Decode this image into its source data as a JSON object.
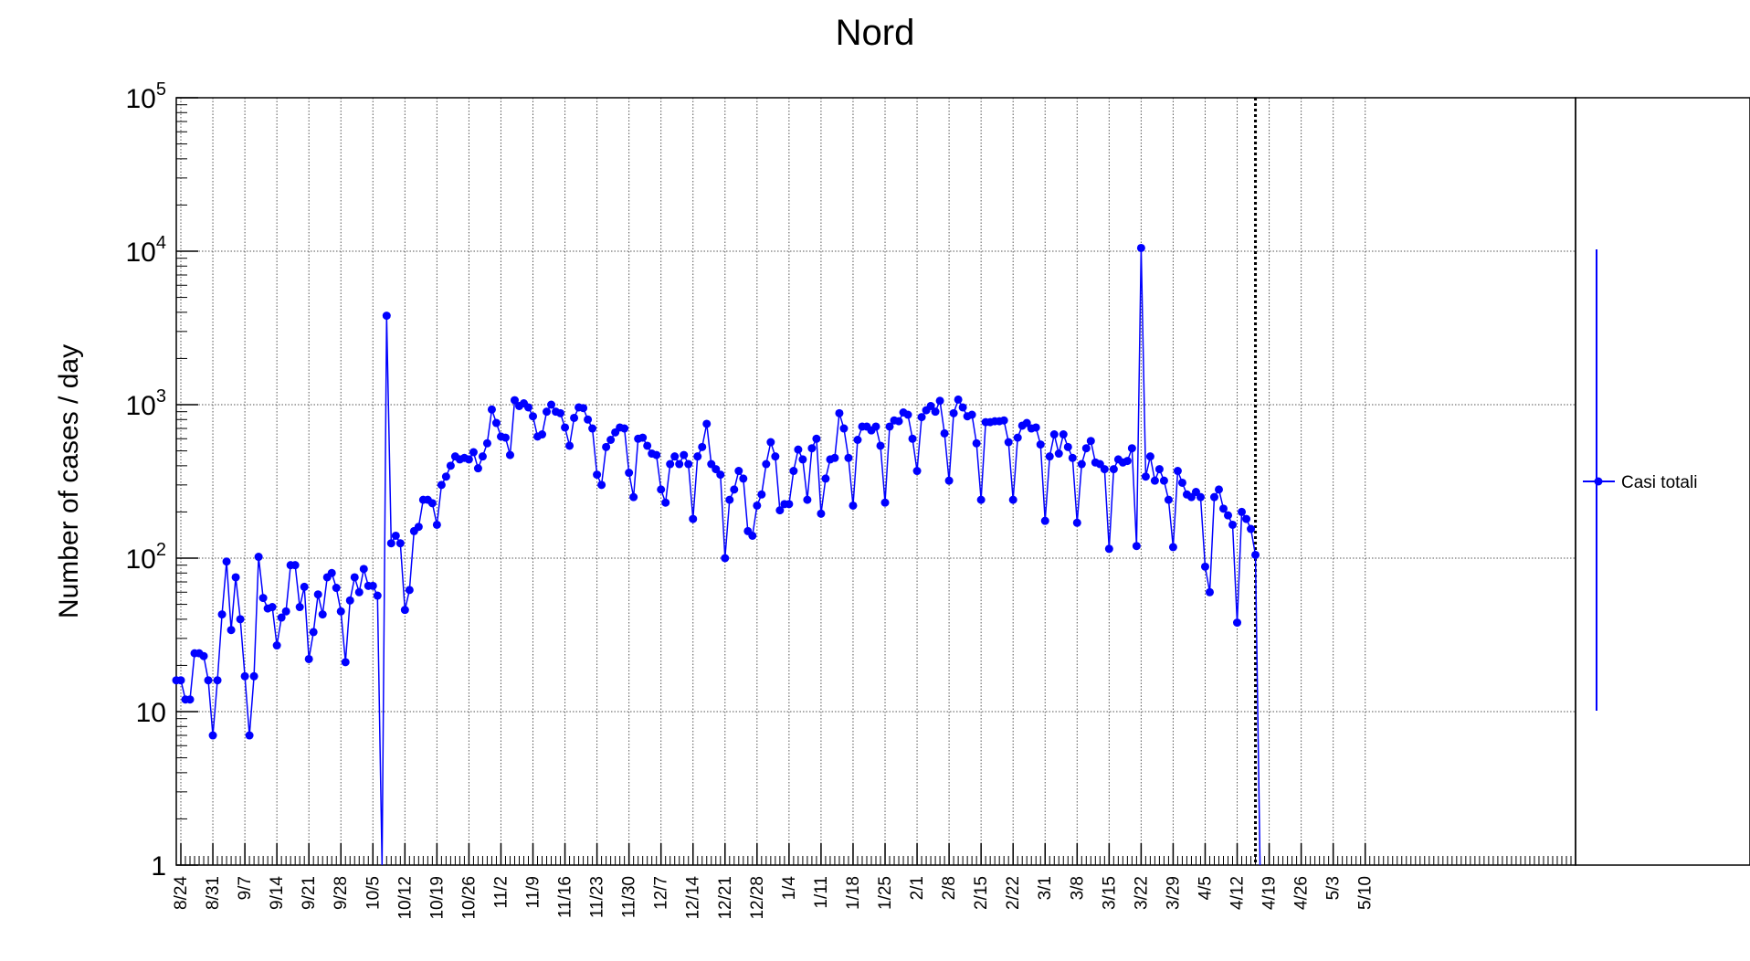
{
  "chart_data": {
    "type": "line",
    "title": "Nord",
    "xlabel": "",
    "ylabel": "Number of cases / day",
    "yscale": "log",
    "ylim": [
      1,
      100000
    ],
    "y_tick_labels": [
      "1",
      "10",
      "10",
      "10",
      "10",
      "10"
    ],
    "y_tick_exponents": [
      "",
      "",
      "2",
      "3",
      "4",
      "5"
    ],
    "grid": true,
    "legend_position": "right",
    "x_tick_labels": [
      "8/24",
      "8/31",
      "9/7",
      "9/14",
      "9/21",
      "9/28",
      "10/5",
      "10/12",
      "10/19",
      "10/26",
      "11/2",
      "11/9",
      "11/16",
      "11/23",
      "11/30",
      "12/7",
      "12/14",
      "12/21",
      "12/28",
      "1/4",
      "1/11",
      "1/18",
      "1/25",
      "2/1",
      "2/8",
      "2/15",
      "2/22",
      "3/1",
      "3/8",
      "3/15",
      "3/22",
      "3/29",
      "4/5",
      "4/12",
      "4/19",
      "4/26",
      "5/3",
      "5/10"
    ],
    "x_start": "8/23",
    "marker_date": "4/16",
    "series": [
      {
        "name": "Casi totali",
        "color": "#0000ff",
        "error_bar": [
          10,
          10000
        ],
        "values": [
          16,
          16,
          12,
          12,
          24,
          24,
          23,
          16,
          7,
          16,
          43,
          95,
          34,
          75,
          40,
          17,
          7,
          17,
          102,
          55,
          47,
          48,
          27,
          41,
          45,
          90,
          90,
          48,
          65,
          22,
          33,
          58,
          43,
          75,
          80,
          64,
          45,
          21,
          53,
          75,
          60,
          85,
          66,
          66,
          57,
          0,
          3800,
          125,
          140,
          125,
          46,
          62,
          150,
          160,
          240,
          240,
          228,
          165,
          300,
          340,
          400,
          460,
          440,
          450,
          440,
          490,
          385,
          460,
          560,
          930,
          760,
          620,
          610,
          470,
          1070,
          980,
          1020,
          960,
          840,
          620,
          640,
          900,
          1000,
          900,
          880,
          710,
          540,
          820,
          960,
          950,
          800,
          700,
          350,
          300,
          530,
          590,
          660,
          710,
          700,
          360,
          250,
          600,
          610,
          540,
          480,
          470,
          280,
          230,
          410,
          460,
          410,
          470,
          410,
          180,
          460,
          530,
          750,
          410,
          380,
          350,
          100,
          240,
          280,
          370,
          330,
          150,
          140,
          220,
          260,
          410,
          570,
          460,
          205,
          225,
          225,
          370,
          510,
          440,
          240,
          520,
          600,
          195,
          330,
          440,
          450,
          880,
          700,
          450,
          220,
          590,
          720,
          720,
          680,
          720,
          540,
          230,
          720,
          790,
          780,
          890,
          860,
          600,
          370,
          830,
          920,
          980,
          900,
          1060,
          650,
          320,
          880,
          1080,
          960,
          840,
          860,
          560,
          240,
          770,
          770,
          780,
          780,
          790,
          570,
          240,
          610,
          730,
          760,
          700,
          710,
          550,
          175,
          460,
          640,
          480,
          640,
          530,
          450,
          170,
          410,
          520,
          580,
          420,
          410,
          380,
          115,
          380,
          440,
          420,
          430,
          520,
          120,
          10500,
          340,
          460,
          320,
          380,
          320,
          240,
          118,
          370,
          310,
          260,
          250,
          270,
          250,
          88,
          60,
          250,
          280,
          210,
          190,
          165,
          38,
          200,
          180,
          155,
          105,
          0
        ]
      }
    ]
  }
}
